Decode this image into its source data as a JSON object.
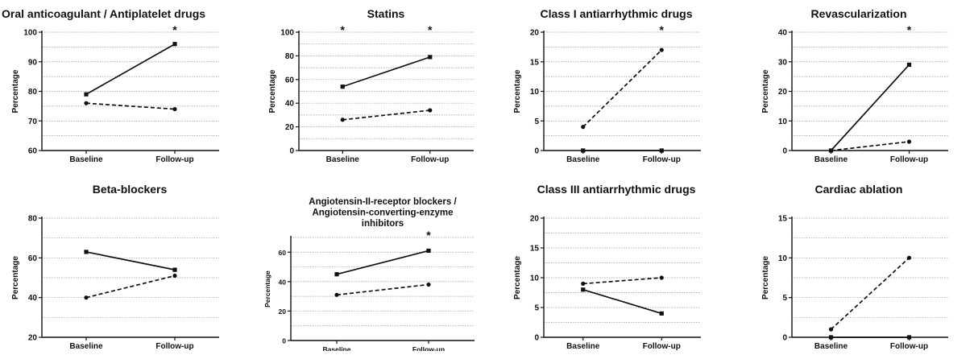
{
  "chart_data": [
    {
      "type": "line",
      "title": "Oral anticoagulant / Antiplatelet drugs",
      "ylabel": "Percentage",
      "categories": [
        "Baseline",
        "Follow-up"
      ],
      "ylim": [
        60,
        100
      ],
      "yticks": [
        60,
        70,
        80,
        90,
        100
      ],
      "grid": true,
      "significance": [
        "",
        "*"
      ],
      "series": [
        {
          "style": "solid",
          "marker": "square",
          "values": [
            79,
            96
          ]
        },
        {
          "style": "dashed",
          "marker": "circle",
          "values": [
            76,
            74
          ]
        }
      ]
    },
    {
      "type": "line",
      "title": "Statins",
      "ylabel": "Percentage",
      "categories": [
        "Baseline",
        "Follow-up"
      ],
      "ylim": [
        0,
        100
      ],
      "yticks": [
        0,
        20,
        40,
        60,
        80,
        100
      ],
      "grid": true,
      "significance": [
        "*",
        "*"
      ],
      "series": [
        {
          "style": "solid",
          "marker": "square",
          "values": [
            54,
            79
          ]
        },
        {
          "style": "dashed",
          "marker": "circle",
          "values": [
            26,
            34
          ]
        }
      ]
    },
    {
      "type": "line",
      "title": "Class I antiarrhythmic drugs",
      "ylabel": "Percentage",
      "categories": [
        "Baseline",
        "Follow-up"
      ],
      "ylim": [
        0,
        20
      ],
      "yticks": [
        0,
        5,
        10,
        15,
        20
      ],
      "grid": true,
      "significance": [
        "",
        "*"
      ],
      "series": [
        {
          "style": "solid",
          "marker": "square",
          "values": [
            0,
            0
          ]
        },
        {
          "style": "dashed",
          "marker": "circle",
          "values": [
            4,
            17
          ]
        }
      ]
    },
    {
      "type": "line",
      "title": "Revascularization",
      "ylabel": "Percentage",
      "categories": [
        "Baseline",
        "Follow-up"
      ],
      "ylim": [
        0,
        40
      ],
      "yticks": [
        0,
        10,
        20,
        30,
        40
      ],
      "grid": true,
      "significance": [
        "",
        "*"
      ],
      "series": [
        {
          "style": "solid",
          "marker": "square",
          "values": [
            0,
            29
          ]
        },
        {
          "style": "dashed",
          "marker": "circle",
          "values": [
            0,
            3
          ]
        }
      ]
    },
    {
      "type": "line",
      "title": "Beta-blockers",
      "ylabel": "Percentage",
      "categories": [
        "Baseline",
        "Follow-up"
      ],
      "ylim": [
        20,
        80
      ],
      "yticks": [
        20,
        40,
        60,
        80
      ],
      "grid": true,
      "significance": [
        "",
        ""
      ],
      "series": [
        {
          "style": "solid",
          "marker": "square",
          "values": [
            63,
            54
          ]
        },
        {
          "style": "dashed",
          "marker": "circle",
          "values": [
            40,
            51
          ]
        }
      ]
    },
    {
      "type": "line",
      "title": "Angiotensin-II-receptor blockers / Angiotensin-converting-enzyme inhibitors",
      "title_lines": [
        "Angiotensin-II-receptor blockers /",
        "Angiotensin-converting-enzyme",
        "inhibitors"
      ],
      "ylabel": "Percentage",
      "categories": [
        "Baseline",
        "Follow-up"
      ],
      "ylim": [
        0,
        70
      ],
      "yticks": [
        0,
        20,
        40,
        60
      ],
      "grid": true,
      "significance": [
        "",
        "*"
      ],
      "series": [
        {
          "style": "solid",
          "marker": "square",
          "values": [
            45,
            61
          ]
        },
        {
          "style": "dashed",
          "marker": "circle",
          "values": [
            31,
            38
          ]
        }
      ]
    },
    {
      "type": "line",
      "title": "Class III antiarrhythmic drugs",
      "ylabel": "Percentage",
      "categories": [
        "Baseline",
        "Follow-up"
      ],
      "ylim": [
        0,
        20
      ],
      "yticks": [
        0,
        5,
        10,
        15,
        20
      ],
      "grid": true,
      "significance": [
        "",
        ""
      ],
      "series": [
        {
          "style": "solid",
          "marker": "square",
          "values": [
            8,
            4
          ]
        },
        {
          "style": "dashed",
          "marker": "circle",
          "values": [
            9,
            10
          ]
        }
      ]
    },
    {
      "type": "line",
      "title": "Cardiac ablation",
      "ylabel": "Percentage",
      "categories": [
        "Baseline",
        "Follow-up"
      ],
      "ylim": [
        0,
        15
      ],
      "yticks": [
        0,
        5,
        10,
        15
      ],
      "grid": true,
      "significance": [
        "",
        ""
      ],
      "series": [
        {
          "style": "solid",
          "marker": "square",
          "values": [
            0,
            0
          ]
        },
        {
          "style": "dashed",
          "marker": "circle",
          "values": [
            1,
            10
          ]
        }
      ]
    }
  ]
}
